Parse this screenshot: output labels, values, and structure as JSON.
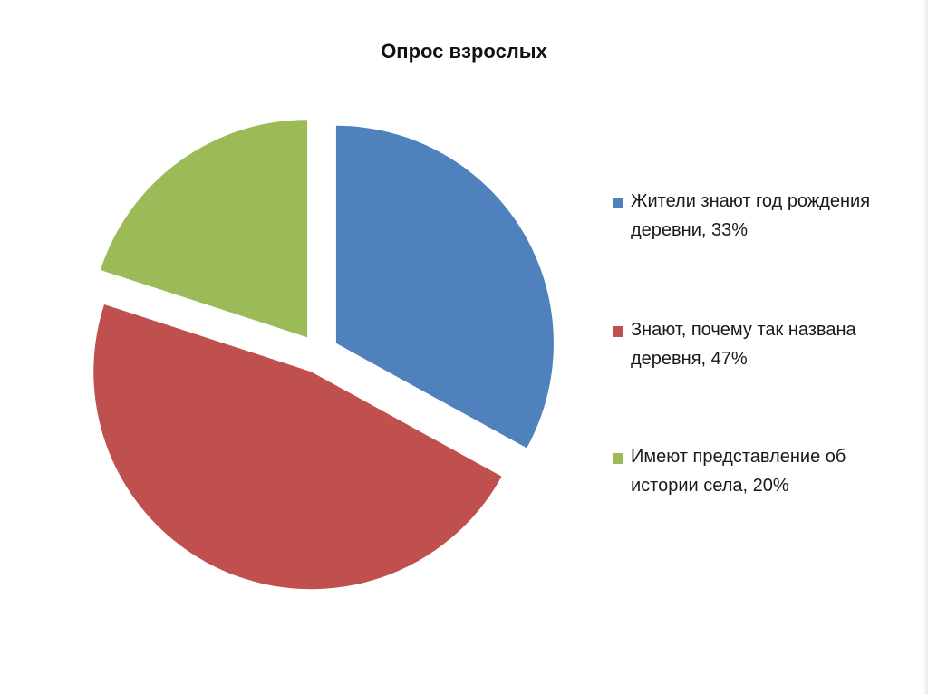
{
  "chart_data": {
    "type": "pie",
    "title": "Опрос взрослых",
    "exploded": true,
    "start_angle_deg": 0,
    "direction": "clockwise",
    "legend_position": "right",
    "slices": [
      {
        "label": "Жители знают год рождения деревни, 33%",
        "value": 33,
        "color": "#4F81BD"
      },
      {
        "label": "Знают, почему так названа деревня, 47%",
        "value": 47,
        "color": "#C0504D"
      },
      {
        "label": "Имеют представление об истории села, 20%",
        "value": 20,
        "color": "#9BBB59"
      }
    ]
  }
}
